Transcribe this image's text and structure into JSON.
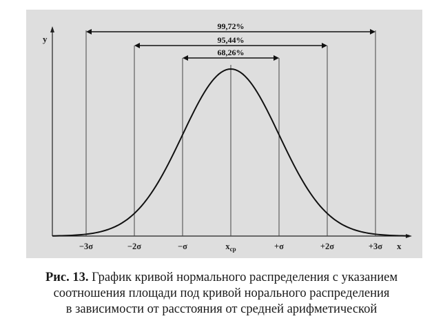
{
  "chart_data": {
    "type": "line",
    "title": "",
    "xlabel": "x",
    "ylabel": "y",
    "x_ticks": [
      {
        "value": -3,
        "label": "−3σ"
      },
      {
        "value": -2,
        "label": "−2σ"
      },
      {
        "value": -1,
        "label": "−σ"
      },
      {
        "value": 0,
        "label": "x",
        "subscript": "ср"
      },
      {
        "value": 1,
        "label": "+σ"
      },
      {
        "value": 2,
        "label": "+2σ"
      },
      {
        "value": 3,
        "label": "+3σ"
      }
    ],
    "xlim": [
      -3.7,
      3.7
    ],
    "ylim": [
      0,
      0.42
    ],
    "curve": {
      "function": "standard normal density",
      "mean": 0,
      "sd": 1
    },
    "intervals": [
      {
        "from": -1,
        "to": 1,
        "label": "68,26%"
      },
      {
        "from": -2,
        "to": 2,
        "label": "95,44%"
      },
      {
        "from": -3,
        "to": 3,
        "label": "99,72%"
      }
    ],
    "grid": false,
    "legend": "none"
  },
  "caption": {
    "prefix": "Рис. 13.",
    "line1": " График кривой нормального распределения с указанием",
    "line2": "соотношения площади под кривой норального распределения",
    "line3": "в зависимости от расстояния от средней арифметической"
  }
}
